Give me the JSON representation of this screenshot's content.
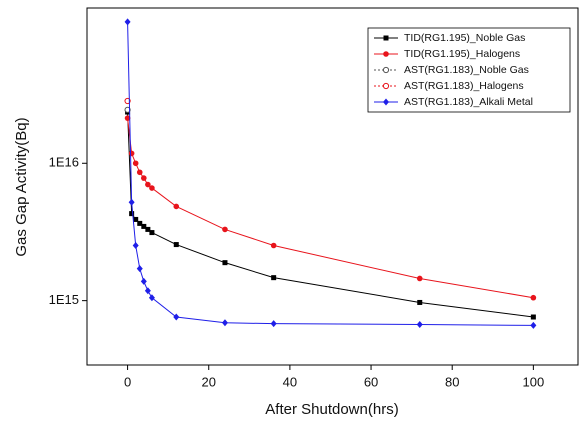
{
  "chart_data": {
    "type": "line",
    "xlabel": "After Shutdown(hrs)",
    "ylabel": "Gas Gap Activity(Bq)",
    "xlim": [
      -10,
      111
    ],
    "xticks": [
      0,
      20,
      40,
      60,
      80,
      100
    ],
    "ylim": [
      340000000000000.0,
      1.35e+17
    ],
    "yscale": "log",
    "yticks": [
      {
        "value": 1000000000000000.0,
        "label": "1E15"
      },
      {
        "value": 1e+16,
        "label": "1E16"
      }
    ],
    "legend": "upper right",
    "series": [
      {
        "name": "TID(RG1.195)_Noble Gas",
        "color": "#000000",
        "marker": "square",
        "dash": false,
        "x": [
          0,
          1,
          2,
          3,
          4,
          5,
          6,
          12,
          24,
          36,
          72,
          100
        ],
        "values": [
          2.36e+16,
          4300000000000000.0,
          3900000000000000.0,
          3650000000000000.0,
          3470000000000000.0,
          3300000000000000.0,
          3130000000000000.0,
          2560000000000000.0,
          1890000000000000.0,
          1470000000000000.0,
          970000000000000.0,
          760000000000000.0
        ]
      },
      {
        "name": "TID(RG1.195)_Halogens",
        "color": "#e8141c",
        "marker": "circle",
        "dash": false,
        "x": [
          0,
          1,
          2,
          3,
          4,
          5,
          6,
          12,
          24,
          36,
          72,
          100
        ],
        "values": [
          2.13e+16,
          1.18e+16,
          1e+16,
          8600000000000000.0,
          7800000000000000.0,
          7000000000000000.0,
          6600000000000000.0,
          4850000000000000.0,
          3300000000000000.0,
          2520000000000000.0,
          1450000000000000.0,
          1050000000000000.0
        ]
      },
      {
        "name": "AST(RG1.183)_Noble Gas",
        "color": "#555555",
        "marker": "open-circle",
        "dash": true,
        "x": [
          0
        ],
        "values": [
          2.45e+16
        ]
      },
      {
        "name": "AST(RG1.183)_Halogens",
        "color": "#e8141c",
        "marker": "open-circle",
        "dash": true,
        "x": [
          0
        ],
        "values": [
          2.84e+16
        ]
      },
      {
        "name": "AST(RG1.183)_Alkali Metal",
        "color": "#1f1fe8",
        "marker": "diamond",
        "dash": false,
        "x": [
          0,
          1,
          2,
          3,
          4,
          5,
          6,
          12,
          24,
          36,
          72,
          100
        ],
        "values": [
          1.07e+17,
          5200000000000000.0,
          2520000000000000.0,
          1710000000000000.0,
          1380000000000000.0,
          1180000000000000.0,
          1050000000000000.0,
          760000000000000.0,
          690000000000000.0,
          680000000000000.0,
          670000000000000.0,
          660000000000000.0
        ]
      }
    ]
  }
}
